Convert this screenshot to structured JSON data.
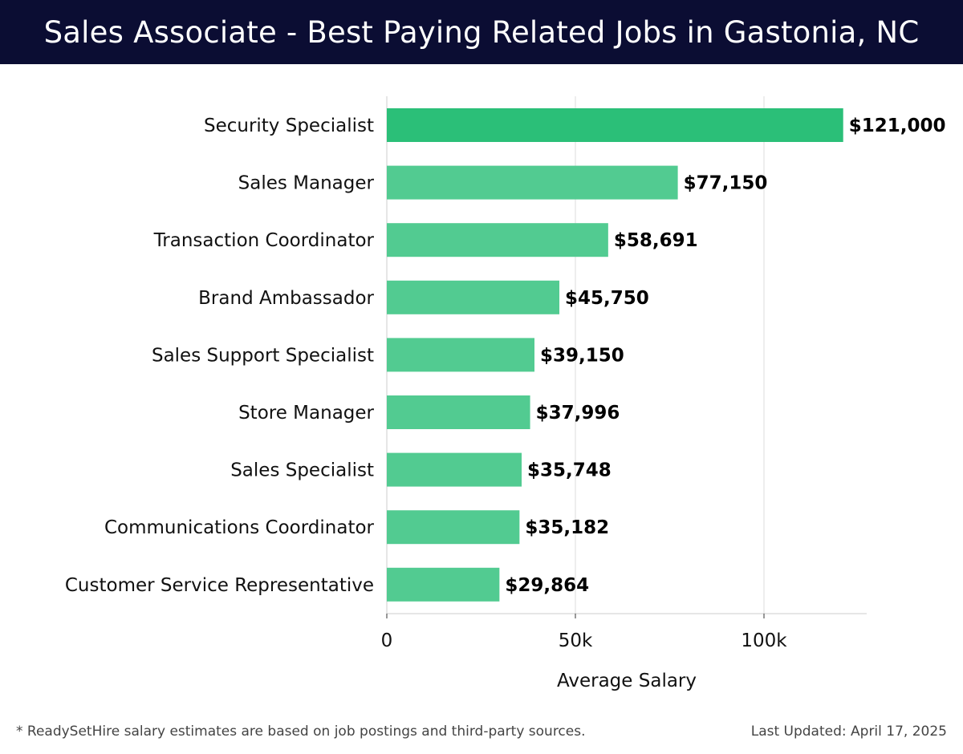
{
  "header": {
    "title": "Sales Associate - Best Paying Related Jobs in Gastonia, NC"
  },
  "chart_data": {
    "type": "bar",
    "orientation": "horizontal",
    "title": "Sales Associate - Best Paying Related Jobs in Gastonia, NC",
    "xlabel": "Average Salary",
    "ylabel": "",
    "xlim": [
      0,
      127000
    ],
    "xticks": [
      0,
      50000,
      100000
    ],
    "xtick_labels": [
      "0",
      "50k",
      "100k"
    ],
    "grid": true,
    "categories": [
      "Security Specialist",
      "Sales Manager",
      "Transaction Coordinator",
      "Brand Ambassador",
      "Sales Support Specialist",
      "Store Manager",
      "Sales Specialist",
      "Communications Coordinator",
      "Customer Service Representative"
    ],
    "values": [
      121000,
      77150,
      58691,
      45750,
      39150,
      37996,
      35748,
      35182,
      29864
    ],
    "value_labels": [
      "$121,000",
      "$77,150",
      "$58,691",
      "$45,750",
      "$39,150",
      "$37,996",
      "$35,748",
      "$35,182",
      "$29,864"
    ],
    "colors": {
      "top_bar": "#2bbf78",
      "bar": "#52cb91",
      "grid": "#dddddd",
      "axis": "#cccccc"
    }
  },
  "footer": {
    "note": "* ReadySetHire salary estimates are based on job postings and third-party sources.",
    "updated": "Last Updated: April 17, 2025"
  }
}
